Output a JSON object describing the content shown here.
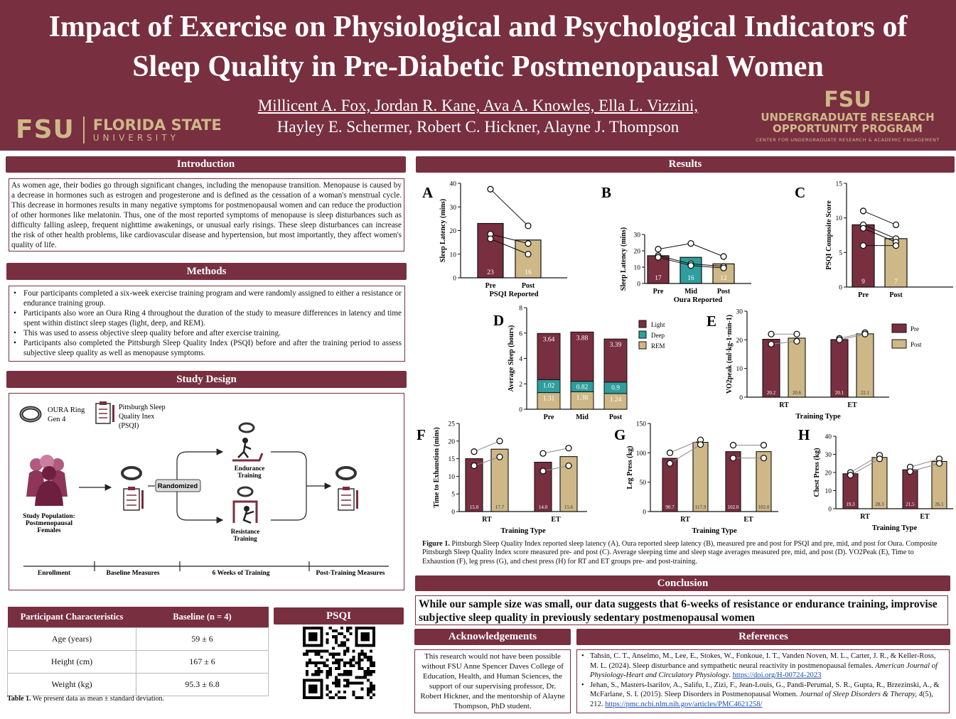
{
  "header": {
    "title_line1": "Impact of Exercise on Physiological and Psychological Indicators of",
    "title_line2": "Sleep Quality in Pre-Diabetic Postmenopausal Women",
    "authors_line1": "Millicent A. Fox, Jordan R. Kane, Ava A. Knowles, Ella L. Vizzini,",
    "authors_line2": "Hayley E. Schermer, Robert C. Hickner, Alayne J. Thompson",
    "fsu_mark": "FSU",
    "fsu_name": "FLORIDA STATE",
    "fsu_university": "UNIVERSITY",
    "urop_mark": "FSU",
    "urop_line1": "UNDERGRADUATE RESEARCH",
    "urop_line2": "OPPORTUNITY PROGRAM",
    "urop_line3": "CENTER FOR UNDERGRADUATE RESEARCH & ACADEMIC ENGAGEMENT"
  },
  "introduction": {
    "heading": "Introduction",
    "text": "As women age, their bodies go through significant changes, including the menopause transition.  Menopause is caused by a decrease in hormones such as estrogen and progesterone and is defined as the cessation of a woman's menstrual cycle. This decrease in hormones results in many negative symptoms for postmenopausal women and can reduce the production of other hormones like melatonin. Thus, one of the most reported symptoms of menopause is sleep disturbances such as difficulty falling asleep, frequent nighttime awakenings, or unusual early risings. These sleep disturbances can increase the risk of other health problems, like cardiovascular disease and hypertension, but most importantly, they affect women's quality of life."
  },
  "methods": {
    "heading": "Methods",
    "items": [
      "Four participants completed a six-week exercise training program and were randomly assigned to either a resistance or endurance training group.",
      "Participants also wore an Oura Ring 4 throughout the duration of the study to measure differences in latency and time spent within distinct sleep stages (light, deep, and REM).",
      "This was used to assess objective sleep quality before and after exercise training.",
      "Participants also completed the Pittsburgh Sleep Quality Index (PSQI) before and after the training period to assess subjective sleep quality as well as menopause symptoms."
    ]
  },
  "study_design": {
    "heading": "Study Design",
    "oura_label_1": "OURA Ring",
    "oura_label_2": "Gen 4",
    "psqi_label_1": "Pittsburgh Sleep",
    "psqi_label_2": "Quality Inex",
    "psqi_label_3": "(PSQI)",
    "population_1": "Study Population:",
    "population_2": "Postmenopausal",
    "population_3": "Females",
    "randomized": "Randomized",
    "endurance_1": "Endurance",
    "endurance_2": "Training",
    "resistance_1": "Resistance",
    "resistance_2": "Training",
    "timeline": [
      "Enrollment",
      "Baseline Measures",
      "6 Weeks of Training",
      "Post-Training Measures"
    ]
  },
  "participant_table": {
    "headers": [
      "Participant Characteristics",
      "Baseline (n = 4)"
    ],
    "rows": [
      [
        "Age (years)",
        "59 ± 6"
      ],
      [
        "Height (cm)",
        "167 ± 6"
      ],
      [
        "Weight (kg)",
        "95.3 ± 6.8"
      ]
    ],
    "caption_bold": "Table 1.",
    "caption": " We present data as mean ± standard deviation."
  },
  "psqi": {
    "heading": "PSQI"
  },
  "results": {
    "heading": "Results",
    "colors": {
      "pre": "#782F40",
      "post": "#CEB888",
      "deep": "#2E9E9E",
      "maroon": "#782F40"
    }
  },
  "chart_data": [
    {
      "panel": "A",
      "type": "bar",
      "categories": [
        "Pre",
        "Post"
      ],
      "values": [
        23,
        16
      ],
      "points": [
        [
          37.5,
          18.5,
          16.5
        ],
        [
          22,
          14.5,
          10
        ]
      ],
      "xlabel": "PSQI Reported",
      "ylabel": "Sleep Latency (mins)",
      "ylim": [
        0,
        40
      ],
      "yticks": [
        0,
        10,
        20,
        30,
        40
      ],
      "colors": [
        "#782F40",
        "#CEB888"
      ]
    },
    {
      "panel": "B",
      "type": "bar",
      "categories": [
        "Pre",
        "Mid",
        "Post"
      ],
      "values": [
        17,
        16,
        12
      ],
      "points": [
        [
          21,
          17,
          16
        ],
        [
          24.5,
          12,
          11
        ],
        [
          16.5,
          10.5,
          9.5
        ]
      ],
      "xlabel": "Oura Reported",
      "ylabel": "Sleep Latency (mins)",
      "ylim": [
        0,
        30
      ],
      "yticks": [
        0,
        10,
        20,
        30
      ],
      "colors": [
        "#782F40",
        "#2E9E9E",
        "#CEB888"
      ]
    },
    {
      "panel": "C",
      "type": "bar",
      "categories": [
        "Pre",
        "Post"
      ],
      "values": [
        9,
        7
      ],
      "points": [
        [
          11,
          9,
          8.5,
          6
        ],
        [
          9,
          7,
          6.5,
          6
        ]
      ],
      "xlabel": "",
      "ylabel": "PSQI Composite Score",
      "ylim": [
        0,
        15
      ],
      "yticks": [
        0,
        5,
        10,
        15
      ],
      "colors": [
        "#782F40",
        "#CEB888"
      ]
    },
    {
      "panel": "D",
      "type": "bar",
      "categories": [
        "Pre",
        "Mid",
        "Post"
      ],
      "series": [
        {
          "name": "REM",
          "values": [
            1.31,
            1.38,
            1.24
          ]
        },
        {
          "name": "Deep",
          "values": [
            1.02,
            0.82,
            0.9
          ]
        },
        {
          "name": "Light",
          "values": [
            3.64,
            3.88,
            3.39
          ]
        }
      ],
      "ylabel": "Average Sleep (hours)",
      "ylim": [
        0,
        8
      ],
      "yticks": [
        0,
        2,
        4,
        6,
        8
      ],
      "legend": "right"
    },
    {
      "panel": "E",
      "type": "bar",
      "categories": [
        "RT",
        "ET"
      ],
      "series": [
        {
          "name": "Pre",
          "values": [
            20.2,
            20.1
          ]
        },
        {
          "name": "Post",
          "values": [
            20.6,
            22.1
          ]
        }
      ],
      "points": {
        "Pre": [
          [
            22,
            18.5
          ],
          [
            20.5,
            20
          ]
        ],
        "Post": [
          [
            22,
            19.5
          ],
          [
            22.5,
            22
          ]
        ]
      },
      "xlabel": "Training Type",
      "ylabel": "VO2peak (ml·kg-1·min-1)",
      "ylim": [
        0,
        30
      ],
      "yticks": [
        0,
        10,
        20,
        30
      ],
      "legend": "right"
    },
    {
      "panel": "F",
      "type": "bar",
      "categories": [
        "RT",
        "ET"
      ],
      "series": [
        {
          "name": "Pre",
          "values": [
            15.0,
            14.0
          ]
        },
        {
          "name": "Post",
          "values": [
            17.7,
            15.6
          ]
        }
      ],
      "points": {
        "Pre": [
          [
            17,
            13
          ],
          [
            16.5,
            11.5
          ]
        ],
        "Post": [
          [
            20,
            15.5
          ],
          [
            18,
            13
          ]
        ]
      },
      "xlabel": "Training Type",
      "ylabel": "Time to Exhaustion (mins)",
      "ylim": [
        0,
        25
      ],
      "yticks": [
        0,
        5,
        10,
        15,
        20,
        25
      ]
    },
    {
      "panel": "G",
      "type": "bar",
      "categories": [
        "RT",
        "ET"
      ],
      "series": [
        {
          "name": "Pre",
          "values": [
            90.7,
            102.0
          ]
        },
        {
          "name": "Post",
          "values": [
            117.9,
            102.0
          ]
        }
      ],
      "points": {
        "Pre": [
          [
            100,
            82
          ],
          [
            113,
            91
          ]
        ],
        "Post": [
          [
            122,
            114
          ],
          [
            113,
            91
          ]
        ]
      },
      "xlabel": "Training Type",
      "ylabel": "Leg Press (kg)",
      "ylim": [
        0,
        150
      ],
      "yticks": [
        0,
        50,
        100,
        150
      ]
    },
    {
      "panel": "H",
      "type": "bar",
      "categories": [
        "RT",
        "ET"
      ],
      "series": [
        {
          "name": "Pre",
          "values": [
            19.3,
            21.5
          ]
        },
        {
          "name": "Post",
          "values": [
            28.3,
            26.1
          ]
        }
      ],
      "points": {
        "Pre": [
          [
            20,
            18.5
          ],
          [
            23,
            20.5
          ]
        ],
        "Post": [
          [
            29.5,
            27.5
          ],
          [
            27.5,
            25
          ]
        ]
      },
      "xlabel": "Training Type",
      "ylabel": "Chest Press (kg)",
      "ylim": [
        0,
        40
      ],
      "yticks": [
        0,
        10,
        20,
        30,
        40
      ]
    }
  ],
  "figure_caption": {
    "bold": "Figure 1.",
    "text": " Pittsburgh Sleep Quality Index reported sleep latency (A), Oura reported sleep latency (B), measured pre and post for PSQI and pre, mid, and post for Oura. Composite Pittsburgh Sleep Quality Index score measured pre- and post (C). Average sleeping time and sleep stage averages measured pre, mid, and post (D). VO2Peak (E), Time to Exhaustion (F), leg press (G), and chest press (H) for RT and ET groups pre- and post-training."
  },
  "conclusion": {
    "heading": "Conclusion",
    "text": "While our sample size was small, our data suggests that 6-weeks of resistance or endurance training, improvise subjective sleep quality in previously sedentary postmenopausal women"
  },
  "acknowledgements": {
    "heading": "Acknowledgements",
    "text": "This research would not have been possible without FSU Anne Spencer Daves College of Education, Health, and Human Sciences, the support of our supervising professor, Dr. Robert Hickner, and the mentorship of Alayne Thompson, PhD student."
  },
  "references": {
    "heading": "References",
    "ref1_authors": "Tahsin, C. T., Anselmo, M., Lee, E., Stokes, W., Fonkoue, I. T., Vanden Noven, M. L., Carter, J. R., & Keller-Ross, M. L. (2024). Sleep disturbance and sympathetic neural reactivity in postmenopausal females. ",
    "ref1_journal": "American Journal of Physiology-Heart and Circulatory Physiology",
    "ref1_link": "https://doi.org/H-00724-2023",
    "ref2_authors": "Jehan, S., Masters-Isarilov, A., Salifu, I., Zizi, F., Jean-Louis, G., Pandi-Perumal, S. R., Gupta, R., Brzezinski, A., & McFarlane, S. I. (2015). Sleep Disorders in Postmenopausal Women. ",
    "ref2_journal": "Journal of Sleep Disorders & Therapy, 4",
    "ref2_tail": "(5), 212. ",
    "ref2_link": "https://pmc.ncbi.nlm.nih.gov/articles/PMC4621258/"
  }
}
